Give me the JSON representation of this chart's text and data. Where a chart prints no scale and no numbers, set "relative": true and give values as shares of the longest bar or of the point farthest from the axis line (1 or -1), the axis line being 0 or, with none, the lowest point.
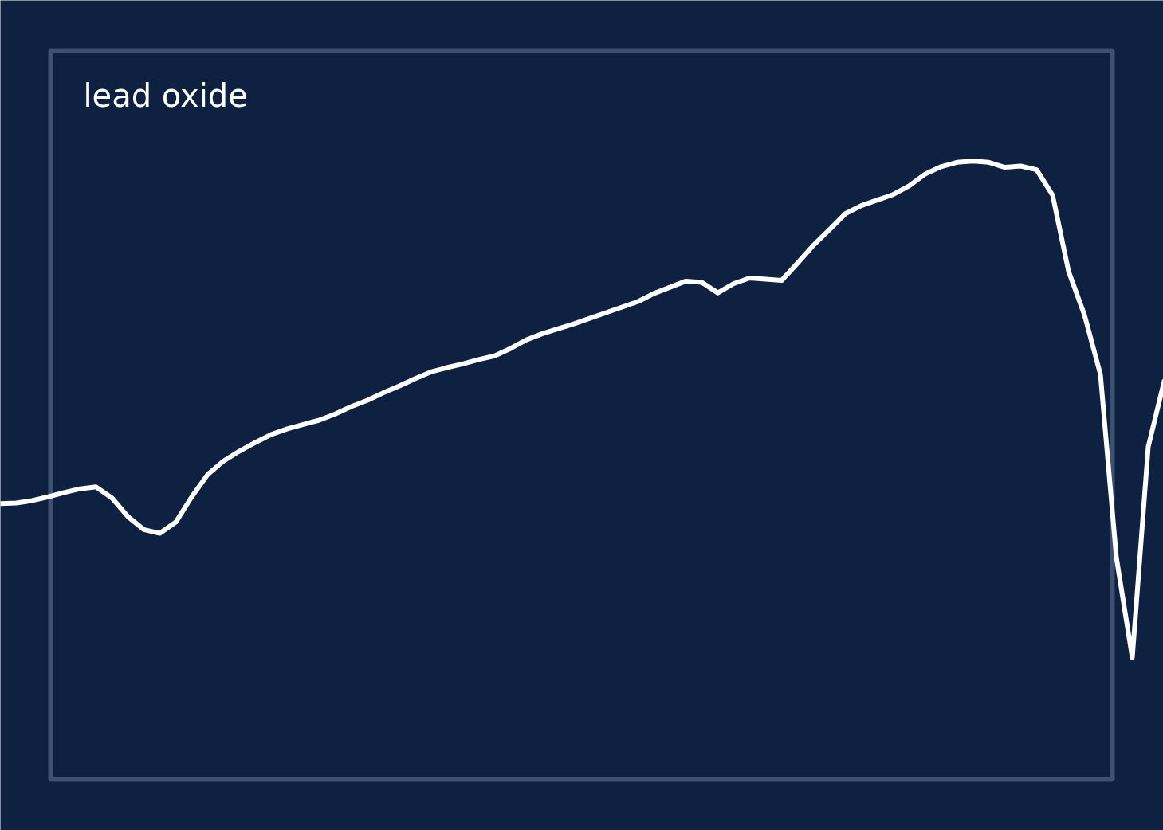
{
  "chart_data": {
    "type": "line",
    "title": "lead oxide",
    "relative": true,
    "color": "#ffffff",
    "categories": [
      null,
      null,
      null,
      null,
      null,
      null,
      null,
      null,
      null,
      null,
      null,
      null,
      null,
      null,
      null,
      null,
      null,
      null,
      null,
      null,
      null,
      null,
      null,
      null,
      null,
      null,
      null,
      null,
      null,
      null,
      null,
      null,
      null,
      null,
      null,
      null,
      null,
      null,
      null,
      null,
      null,
      null,
      null,
      null,
      null,
      null,
      null,
      null,
      null,
      null,
      null,
      null,
      null,
      null,
      null,
      null,
      null,
      null,
      null,
      null,
      null,
      null,
      null,
      null,
      null,
      null,
      null,
      null,
      null,
      null,
      null,
      null,
      null,
      null
    ],
    "values": [
      0.446,
      0.447,
      0.451,
      0.457,
      0.464,
      0.47,
      0.473,
      0.455,
      0.425,
      0.404,
      0.398,
      0.416,
      0.457,
      0.493,
      0.515,
      0.531,
      0.545,
      0.558,
      0.567,
      0.574,
      0.581,
      0.591,
      0.603,
      0.613,
      0.625,
      0.636,
      0.648,
      0.659,
      0.666,
      0.672,
      0.679,
      0.685,
      0.697,
      0.711,
      0.721,
      0.729,
      0.737,
      0.746,
      0.755,
      0.764,
      0.773,
      0.786,
      0.796,
      0.806,
      0.804,
      0.787,
      0.802,
      0.811,
      0.809,
      0.807,
      0.835,
      0.864,
      0.889,
      0.915,
      0.928,
      0.937,
      0.946,
      0.96,
      0.979,
      0.991,
      0.998,
      1,
      0.998,
      0.99,
      0.992,
      0.986,
      0.945,
      0.822,
      0.751,
      0.655,
      0.359,
      0.197,
      0.538,
      0.644
    ]
  }
}
